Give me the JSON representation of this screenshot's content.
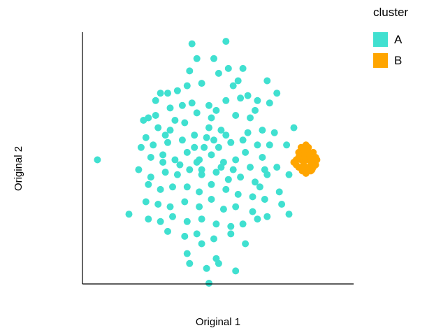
{
  "chart_data": {
    "type": "scatter",
    "title": "",
    "xlabel": "Original 1",
    "ylabel": "Original 2",
    "xlim": [
      0,
      10
    ],
    "ylim": [
      0,
      10
    ],
    "grid": false,
    "legend": {
      "title": "cluster",
      "placement": "top-right"
    },
    "colors": {
      "A": "#40e0d0",
      "B": "#ffa500"
    },
    "series": [
      {
        "name": "A",
        "color": "#40e0d0",
        "points": [
          [
            0.3,
            5.0
          ],
          [
            1.6,
            2.8
          ],
          [
            2.4,
            6.7
          ],
          [
            2.9,
            7.7
          ],
          [
            4.2,
            9.7
          ],
          [
            5.6,
            9.8
          ],
          [
            4.4,
            9.1
          ],
          [
            5.1,
            9.1
          ],
          [
            4.1,
            8.6
          ],
          [
            5.3,
            8.5
          ],
          [
            6.1,
            8.2
          ],
          [
            7.3,
            8.2
          ],
          [
            7.7,
            7.7
          ],
          [
            2.7,
            7.4
          ],
          [
            3.2,
            7.7
          ],
          [
            4.0,
            8.0
          ],
          [
            4.6,
            8.1
          ],
          [
            5.9,
            8.0
          ],
          [
            6.5,
            7.6
          ],
          [
            6.9,
            7.4
          ],
          [
            7.4,
            7.3
          ],
          [
            3.3,
            7.1
          ],
          [
            3.8,
            7.2
          ],
          [
            4.9,
            7.2
          ],
          [
            5.6,
            7.4
          ],
          [
            6.2,
            7.5
          ],
          [
            2.2,
            6.6
          ],
          [
            2.8,
            6.3
          ],
          [
            3.3,
            6.2
          ],
          [
            3.9,
            6.5
          ],
          [
            4.4,
            6.9
          ],
          [
            5.0,
            6.7
          ],
          [
            5.4,
            6.2
          ],
          [
            6.0,
            6.8
          ],
          [
            6.6,
            6.7
          ],
          [
            7.1,
            6.2
          ],
          [
            2.3,
            5.9
          ],
          [
            2.6,
            5.6
          ],
          [
            3.2,
            5.7
          ],
          [
            3.8,
            5.8
          ],
          [
            4.3,
            5.5
          ],
          [
            4.8,
            5.9
          ],
          [
            5.3,
            5.5
          ],
          [
            5.8,
            5.7
          ],
          [
            6.4,
            5.3
          ],
          [
            7.1,
            5.1
          ],
          [
            7.6,
            6.1
          ],
          [
            8.4,
            6.3
          ],
          [
            2.1,
            5.5
          ],
          [
            2.5,
            5.1
          ],
          [
            3.0,
            5.2
          ],
          [
            3.5,
            5.0
          ],
          [
            4.0,
            5.3
          ],
          [
            4.5,
            5.0
          ],
          [
            5.0,
            5.2
          ],
          [
            5.5,
            4.9
          ],
          [
            6.0,
            5.0
          ],
          [
            6.6,
            4.7
          ],
          [
            7.2,
            4.6
          ],
          [
            7.7,
            4.7
          ],
          [
            2.0,
            4.6
          ],
          [
            2.5,
            4.3
          ],
          [
            3.1,
            4.5
          ],
          [
            3.6,
            4.4
          ],
          [
            4.1,
            4.6
          ],
          [
            4.6,
            4.4
          ],
          [
            5.2,
            4.5
          ],
          [
            5.7,
            4.2
          ],
          [
            6.2,
            4.3
          ],
          [
            6.8,
            4.1
          ],
          [
            7.3,
            4.4
          ],
          [
            2.4,
            4.0
          ],
          [
            2.9,
            3.8
          ],
          [
            3.4,
            3.9
          ],
          [
            4.0,
            3.9
          ],
          [
            4.5,
            3.7
          ],
          [
            5.0,
            4.0
          ],
          [
            5.6,
            3.8
          ],
          [
            6.1,
            3.6
          ],
          [
            6.7,
            3.5
          ],
          [
            7.2,
            3.4
          ],
          [
            7.8,
            3.7
          ],
          [
            2.3,
            3.3
          ],
          [
            2.8,
            3.2
          ],
          [
            3.3,
            3.1
          ],
          [
            3.9,
            3.3
          ],
          [
            4.5,
            3.1
          ],
          [
            5.0,
            3.4
          ],
          [
            5.5,
            3.0
          ],
          [
            6.0,
            3.1
          ],
          [
            6.7,
            2.9
          ],
          [
            7.3,
            2.7
          ],
          [
            7.9,
            3.2
          ],
          [
            8.2,
            2.8
          ],
          [
            2.4,
            2.6
          ],
          [
            2.9,
            2.5
          ],
          [
            3.4,
            2.7
          ],
          [
            4.0,
            2.5
          ],
          [
            4.6,
            2.6
          ],
          [
            5.2,
            2.4
          ],
          [
            5.8,
            2.3
          ],
          [
            6.3,
            2.4
          ],
          [
            6.9,
            2.6
          ],
          [
            3.2,
            2.1
          ],
          [
            3.9,
            1.9
          ],
          [
            4.4,
            2.0
          ],
          [
            5.1,
            1.8
          ],
          [
            5.8,
            2.0
          ],
          [
            6.4,
            1.6
          ],
          [
            4.0,
            1.2
          ],
          [
            4.6,
            1.6
          ],
          [
            5.2,
            1.0
          ],
          [
            4.1,
            0.8
          ],
          [
            4.8,
            0.6
          ],
          [
            5.3,
            0.8
          ],
          [
            6.0,
            0.5
          ],
          [
            4.9,
            0.0
          ],
          [
            4.4,
            4.9
          ],
          [
            4.7,
            5.5
          ],
          [
            5.1,
            5.8
          ],
          [
            4.3,
            6.0
          ],
          [
            4.9,
            6.3
          ],
          [
            5.6,
            6.0
          ],
          [
            4.6,
            4.6
          ],
          [
            5.4,
            4.7
          ],
          [
            3.7,
            4.8
          ],
          [
            6.3,
            5.8
          ],
          [
            2.7,
            6.8
          ],
          [
            3.5,
            6.6
          ],
          [
            6.9,
            5.6
          ],
          [
            7.4,
            5.6
          ],
          [
            8.1,
            5.6
          ],
          [
            7.0,
            3.9
          ],
          [
            3.0,
            4.9
          ],
          [
            5.9,
            4.6
          ],
          [
            6.5,
            6.1
          ],
          [
            4.2,
            7.3
          ],
          [
            5.2,
            7.0
          ],
          [
            5.7,
            8.7
          ],
          [
            6.3,
            8.7
          ],
          [
            3.6,
            7.8
          ],
          [
            6.8,
            7.0
          ],
          [
            3.1,
            6.0
          ],
          [
            8.2,
            4.4
          ]
        ]
      },
      {
        "name": "B",
        "color": "#ffa500",
        "points": [
          [
            8.5,
            5.0
          ],
          [
            8.6,
            5.3
          ],
          [
            8.7,
            5.5
          ],
          [
            8.8,
            5.2
          ],
          [
            8.9,
            5.6
          ],
          [
            9.0,
            5.3
          ],
          [
            9.1,
            5.0
          ],
          [
            9.2,
            5.3
          ],
          [
            9.3,
            5.1
          ],
          [
            8.6,
            4.7
          ],
          [
            8.7,
            5.0
          ],
          [
            8.8,
            4.8
          ],
          [
            8.9,
            5.0
          ],
          [
            9.0,
            4.7
          ],
          [
            9.1,
            4.9
          ],
          [
            9.2,
            4.7
          ],
          [
            9.3,
            4.8
          ],
          [
            8.5,
            4.8
          ],
          [
            8.4,
            4.9
          ],
          [
            8.8,
            5.4
          ],
          [
            9.0,
            5.5
          ],
          [
            8.95,
            4.6
          ],
          [
            8.75,
            4.55
          ],
          [
            9.15,
            4.6
          ],
          [
            8.6,
            5.1
          ],
          [
            8.85,
            5.1
          ],
          [
            9.05,
            5.1
          ],
          [
            9.25,
            5.0
          ],
          [
            9.35,
            5.0
          ],
          [
            8.7,
            4.65
          ],
          [
            8.9,
            4.45
          ],
          [
            9.1,
            4.55
          ]
        ]
      }
    ]
  }
}
